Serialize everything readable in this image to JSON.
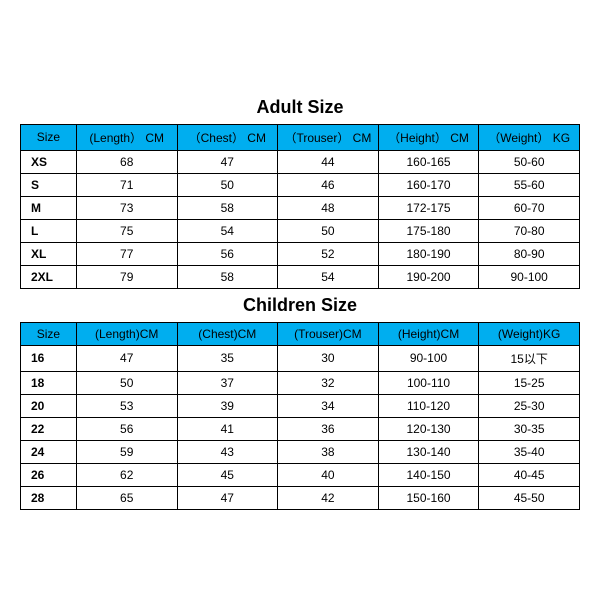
{
  "header_bg": "#00aeef",
  "border_color": "#000000",
  "bg_color": "#ffffff",
  "text_color": "#000000",
  "title_fontsize": 18,
  "cell_fontsize": 12,
  "adult": {
    "title": "Adult Size",
    "columns": [
      "Size",
      "(Length） CM",
      "（Chest） CM",
      "（Trouser） CM",
      "（Height） CM",
      "（Weight） KG"
    ],
    "rows": [
      [
        "XS",
        "68",
        "47",
        "44",
        "160-165",
        "50-60"
      ],
      [
        "S",
        "71",
        "50",
        "46",
        "160-170",
        "55-60"
      ],
      [
        "M",
        "73",
        "58",
        "48",
        "172-175",
        "60-70"
      ],
      [
        "L",
        "75",
        "54",
        "50",
        "175-180",
        "70-80"
      ],
      [
        "XL",
        "77",
        "56",
        "52",
        "180-190",
        "80-90"
      ],
      [
        "2XL",
        "79",
        "58",
        "54",
        "190-200",
        "90-100"
      ]
    ]
  },
  "children": {
    "title": "Children Size",
    "columns": [
      "Size",
      "(Length)CM",
      "(Chest)CM",
      "(Trouser)CM",
      "(Height)CM",
      "(Weight)KG"
    ],
    "rows": [
      [
        "16",
        "47",
        "35",
        "30",
        "90-100",
        "15以下"
      ],
      [
        "18",
        "50",
        "37",
        "32",
        "100-110",
        "15-25"
      ],
      [
        "20",
        "53",
        "39",
        "34",
        "110-120",
        "25-30"
      ],
      [
        "22",
        "56",
        "41",
        "36",
        "120-130",
        "30-35"
      ],
      [
        "24",
        "59",
        "43",
        "38",
        "130-140",
        "35-40"
      ],
      [
        "26",
        "62",
        "45",
        "40",
        "140-150",
        "40-45"
      ],
      [
        "28",
        "65",
        "47",
        "42",
        "150-160",
        "45-50"
      ]
    ]
  }
}
